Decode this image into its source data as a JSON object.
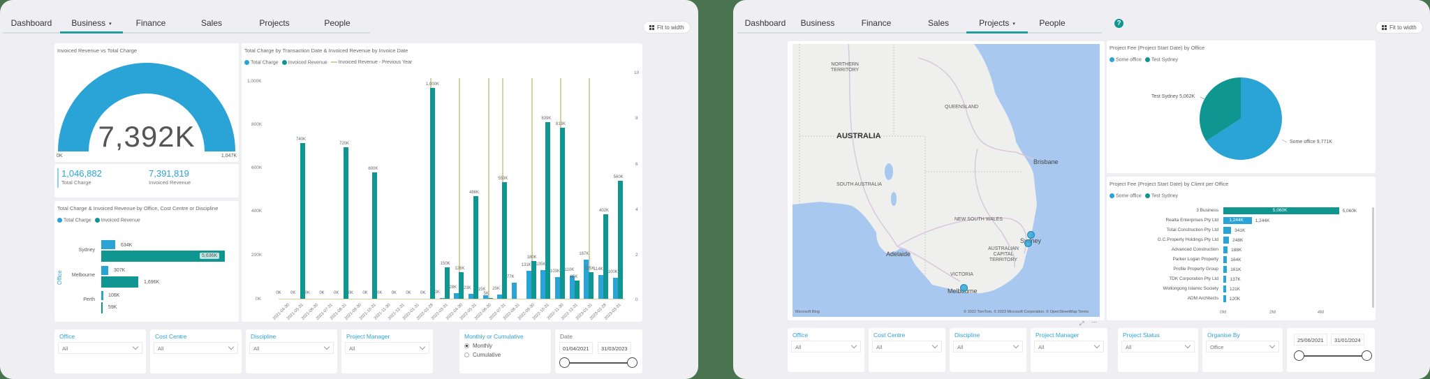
{
  "left_screen": {
    "nav": {
      "tabs": [
        {
          "label": "Dashboard",
          "active": false
        },
        {
          "label": "Business",
          "active": true,
          "caret": "▾"
        },
        {
          "label": "Finance",
          "active": false
        },
        {
          "label": "Sales",
          "active": false
        },
        {
          "label": "Projects",
          "active": false
        },
        {
          "label": "People",
          "active": false
        }
      ]
    },
    "fit_button": "Fit to width",
    "gauge": {
      "title": "Invoiced Revenue vs Total Charge",
      "value": "7,392K",
      "min": "0K",
      "max": "1,047K",
      "color": "#2aa3d6"
    },
    "kpis": [
      {
        "value": "1,046,882",
        "label": "Total Charge"
      },
      {
        "value": "7,391,819",
        "label": "Invoiced Revenue"
      }
    ],
    "office_chart": {
      "title": "Total Charge & Invoiced Revenue by Office, Cost Centre or Discipline",
      "legend": [
        "Total Charge",
        "Invoiced Revenue"
      ],
      "axis_title": "Office",
      "rows": [
        {
          "category": "Sydney",
          "total_charge": "634K",
          "invoiced_revenue": "5,636K"
        },
        {
          "category": "Melbourne",
          "total_charge": "307K",
          "invoiced_revenue": "1,696K"
        },
        {
          "category": "Perth",
          "total_charge": "106K",
          "invoiced_revenue": "59K"
        }
      ]
    },
    "column_chart": {
      "title": "Total Charge by Transaction Date & Invoiced Revenue by Invoice Date",
      "legend": [
        "Total Charge",
        "Invoiced Revenue",
        "Invoiced Revenue - Previous Year"
      ],
      "y_ticks": [
        "1,000K",
        "800K",
        "600K",
        "400K",
        "200K",
        "0K"
      ],
      "y2_ticks": [
        "10",
        "8",
        "6",
        "4",
        "2",
        "0"
      ]
    },
    "slicers": [
      {
        "title": "Office",
        "value": "All"
      },
      {
        "title": "Cost Centre",
        "value": "All"
      },
      {
        "title": "Discipline",
        "value": "All"
      },
      {
        "title": "Project Manager",
        "value": "All"
      }
    ],
    "mode_slicer": {
      "title": "Monthly or Cumulative",
      "options": [
        {
          "label": "Monthly",
          "checked": true
        },
        {
          "label": "Cumulative",
          "checked": false
        }
      ]
    },
    "date_slicer": {
      "title": "Date",
      "start": "01/04/2021",
      "end": "31/03/2023"
    }
  },
  "right_screen": {
    "nav": {
      "tabs": [
        {
          "label": "Dashboard",
          "active": false
        },
        {
          "label": "Business",
          "active": false
        },
        {
          "label": "Finance",
          "active": false
        },
        {
          "label": "Sales",
          "active": false
        },
        {
          "label": "Projects",
          "active": true,
          "caret": "▾"
        },
        {
          "label": "People",
          "active": false
        }
      ],
      "help_icon": "?"
    },
    "fit_button": "Fit to width",
    "map": {
      "labels": {
        "nt": "NORTHERN\nTERRITORY",
        "qld": "QUEENSLAND",
        "australia": "AUSTRALIA",
        "sa": "SOUTH AUSTRALIA",
        "nsw": "NEW SOUTH WALES",
        "act": "AUSTRALIAN\nCAPITAL\nTERRITORY",
        "vic": "VICTORIA",
        "brisbane": "Brisbane",
        "sydney": "Sydney",
        "adelaide": "Adelaide",
        "melbourne": "Melbourne"
      },
      "brand": "Microsoft Bing",
      "copyright": "© 2022 TomTom, © 2023 Microsoft Corporation, © OpenStreetMap  Terms"
    },
    "pie_chart": {
      "title": "Project Fee (Project Start Date) by Office",
      "legend": [
        "Some office",
        "Test Sydney"
      ],
      "label_test_sydney": "Test Sydney 5,062K",
      "label_some_office": "Some office 9,771K"
    },
    "client_chart": {
      "title": "Project Fee (Project Start Date) by Client per Office",
      "legend": [
        "Some office",
        "Test Sydney"
      ],
      "x_ticks": [
        "0M",
        "2M",
        "4M"
      ]
    },
    "slicers": [
      {
        "title": "Office",
        "value": "All"
      },
      {
        "title": "Cost Centre",
        "value": "All"
      },
      {
        "title": "Discipline",
        "value": "All"
      },
      {
        "title": "Project Manager",
        "value": "All"
      },
      {
        "title": "Project Status",
        "value": "All"
      },
      {
        "title": "Organise By",
        "value": "Office"
      }
    ],
    "date_slicer": {
      "start": "25/06/2021",
      "end": "31/01/2024"
    }
  },
  "chart_data": [
    {
      "type": "gauge",
      "title": "Invoiced Revenue vs Total Charge",
      "value": 7392,
      "min": 0,
      "max": 1047,
      "unit": "K"
    },
    {
      "type": "bar",
      "orientation": "horizontal",
      "title": "Total Charge & Invoiced Revenue by Office, Cost Centre or Discipline",
      "ylabel": "Office",
      "categories": [
        "Sydney",
        "Melbourne",
        "Perth"
      ],
      "series": [
        {
          "name": "Total Charge",
          "values": [
            634,
            307,
            106
          ],
          "color": "#2aa3d6"
        },
        {
          "name": "Invoiced Revenue",
          "values": [
            5636,
            1696,
            59
          ],
          "color": "#0f9690"
        }
      ],
      "unit": "K"
    },
    {
      "type": "bar",
      "title": "Total Charge by Transaction Date & Invoiced Revenue by Invoice Date",
      "categories": [
        "2021-04-30",
        "2021-05-31",
        "2021-06-30",
        "2021-07-31",
        "2021-08-31",
        "2021-09-30",
        "2021-10-31",
        "2021-11-30",
        "2021-12-31",
        "2022-01-31",
        "2022-02-28",
        "2022-03-31",
        "2022-04-30",
        "2022-05-31",
        "2022-06-30",
        "2022-07-31",
        "2022-08-31",
        "2022-09-30",
        "2022-10-31",
        "2022-11-30",
        "2022-12-31",
        "2023-01-31",
        "2023-02-28",
        "2023-03-31"
      ],
      "series": [
        {
          "name": "Total Charge",
          "values": [
            0,
            0,
            0,
            0,
            0,
            0,
            0,
            0,
            0,
            0,
            0,
            3,
            28,
            23,
            15,
            20,
            77,
            131,
            135,
            103,
            110,
            187,
            114,
            100
          ],
          "color": "#2aa3d6"
        },
        {
          "name": "Invoiced Revenue",
          "values": [
            0,
            740,
            0,
            0,
            720,
            0,
            600,
            0,
            0,
            0,
            1000,
            150,
            126,
            486,
            5,
            553,
            0,
            180,
            839,
            813,
            85,
            125,
            402,
            560
          ],
          "color": "#0f9690"
        },
        {
          "name": "Invoiced Revenue - Previous Year",
          "type": "line",
          "color": "#d6cfa2"
        }
      ],
      "ylabel": "",
      "ylim": [
        0,
        1050
      ],
      "y2lim": [
        0,
        10
      ],
      "unit": "K"
    },
    {
      "type": "pie",
      "title": "Project Fee (Project Start Date) by Office",
      "categories": [
        "Some office",
        "Test Sydney"
      ],
      "values": [
        9771,
        5062
      ],
      "colors": [
        "#2aa3d6",
        "#0f9690"
      ],
      "unit": "K"
    },
    {
      "type": "bar",
      "orientation": "horizontal",
      "title": "Project Fee (Project Start Date) by Client per Office",
      "categories": [
        "3 Business",
        "Realta Enterprises Pty Ltd",
        "Total Construction Pty Ltd",
        "G.C.Property Holdings Pty Ltd",
        "Advanced Construction",
        "Parker Logan Property",
        "Profile Property Group",
        "TDK Corporation Pty Ltd",
        "Wollongong Islamic Society",
        "ADM Architects"
      ],
      "values": [
        5060,
        1244,
        341,
        248,
        188,
        164,
        161,
        137,
        121,
        120
      ],
      "labels": [
        "5,060K",
        "1,244K",
        "341K",
        "248K",
        "188K",
        "164K",
        "161K",
        "137K",
        "121K",
        "120K"
      ],
      "office": [
        "Test Sydney",
        "Some office",
        "Some office",
        "Some office",
        "Some office",
        "Some office",
        "Some office",
        "Some office",
        "Some office",
        "Some office"
      ],
      "x_ticks": [
        "0M",
        "2M",
        "4M"
      ],
      "xlim": [
        0,
        5500
      ],
      "unit": "K"
    }
  ]
}
